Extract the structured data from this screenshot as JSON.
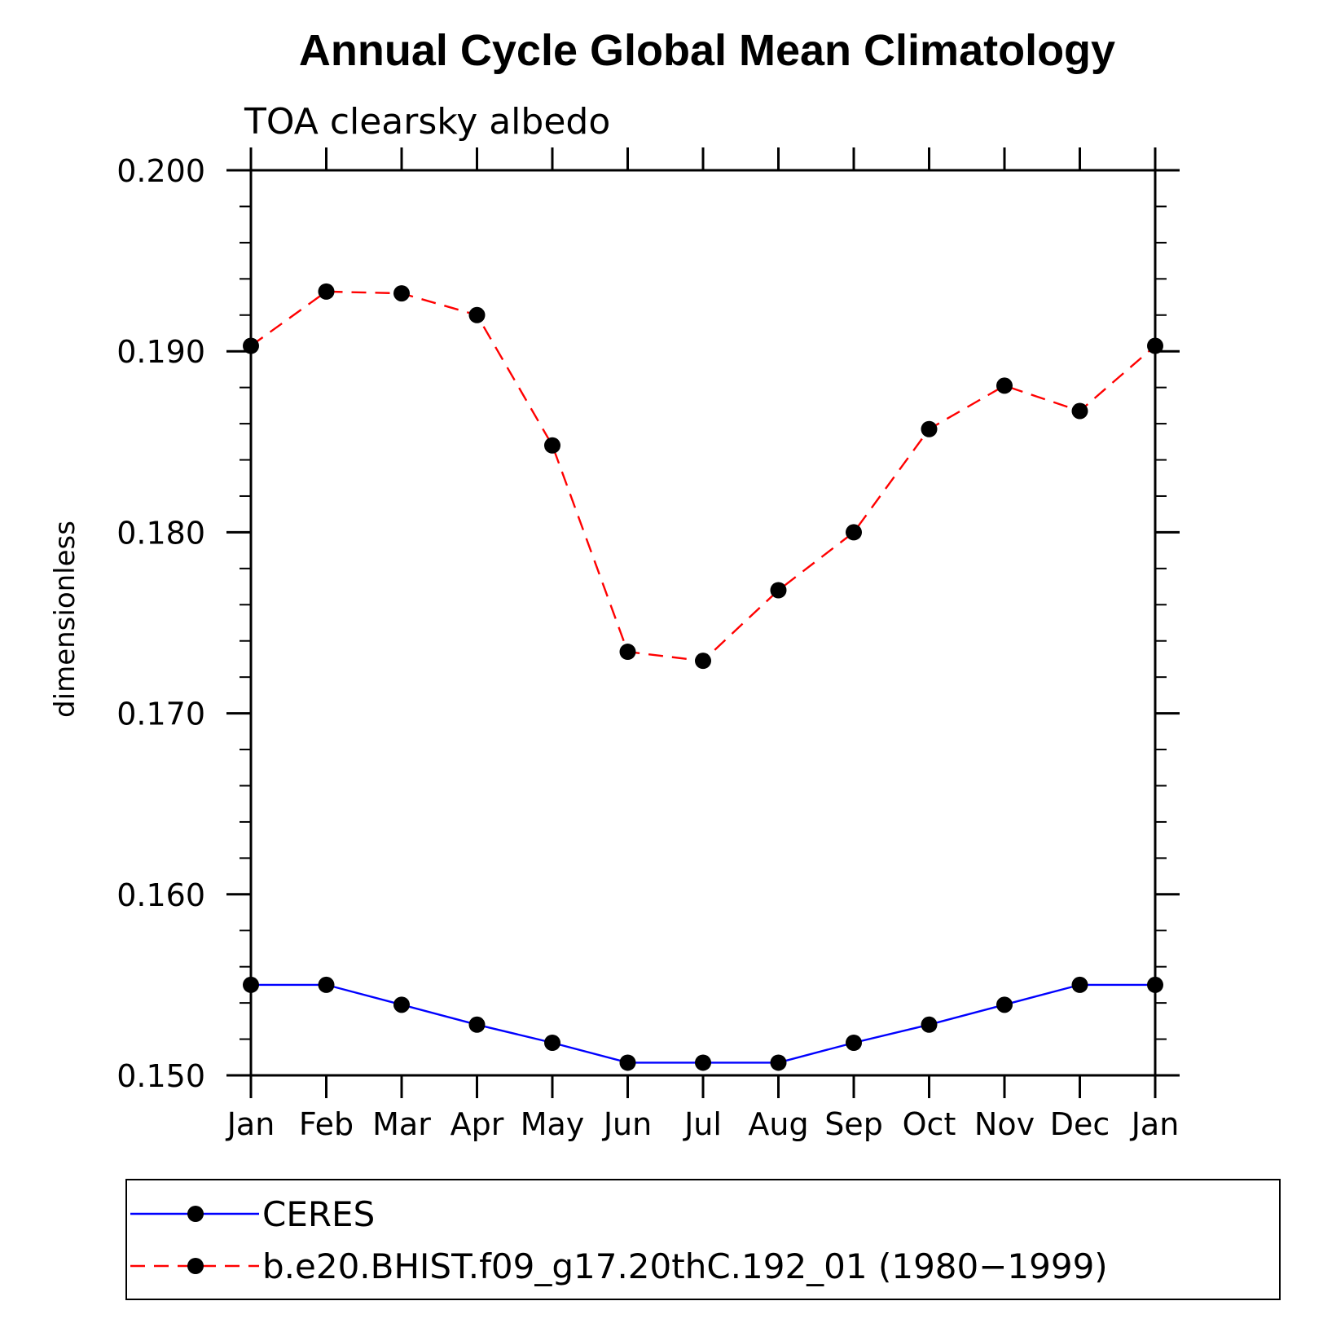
{
  "chart_data": {
    "type": "line",
    "title": "Annual Cycle Global Mean Climatology",
    "subtitle": "TOA clearsky albedo",
    "ylabel": "dimensionless",
    "xlabel": "",
    "categories": [
      "Jan",
      "Feb",
      "Mar",
      "Apr",
      "May",
      "Jun",
      "Jul",
      "Aug",
      "Sep",
      "Oct",
      "Nov",
      "Dec",
      "Jan"
    ],
    "ylim": [
      0.15,
      0.2
    ],
    "yticks": [
      "0.150",
      "0.160",
      "0.170",
      "0.180",
      "0.190",
      "0.200"
    ],
    "series": [
      {
        "name": "CERES",
        "color": "#0000ff",
        "line_style": "solid",
        "marker": "filled-circle",
        "values": [
          0.155,
          0.155,
          0.1539,
          0.1528,
          0.1518,
          0.1507,
          0.1507,
          0.1507,
          0.1518,
          0.1528,
          0.1539,
          0.155,
          0.155
        ]
      },
      {
        "name": "b.e20.BHIST.f09_g17.20thC.192_01 (1980−1999)",
        "color": "#ff0000",
        "line_style": "dashed",
        "marker": "filled-circle",
        "values": [
          0.1903,
          0.1933,
          0.1932,
          0.192,
          0.1848,
          0.1734,
          0.1729,
          0.1768,
          0.18,
          0.1857,
          0.1881,
          0.1867,
          0.1903
        ]
      }
    ],
    "legend_position": "bottom"
  }
}
